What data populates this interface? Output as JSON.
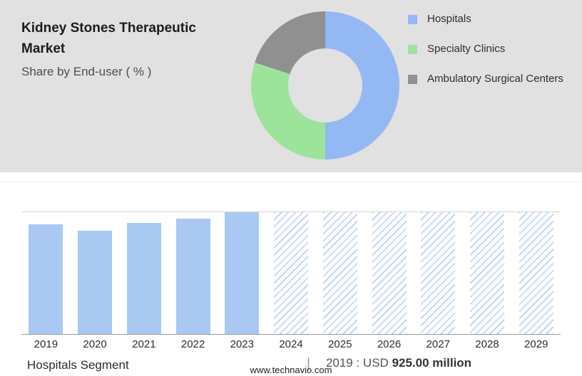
{
  "header": {
    "title": "Kidney Stones Therapeutic Market",
    "subtitle": "Share by End-user ( % )"
  },
  "legend": {
    "items": [
      {
        "label": "Hospitals",
        "color": "#93b8f3"
      },
      {
        "label": "Specialty Clinics",
        "color": "#9ce49b"
      },
      {
        "label": "Ambulatory Surgical Centers",
        "color": "#909090"
      }
    ]
  },
  "chart_data": [
    {
      "type": "pie",
      "title": "Share by End-user ( % )",
      "donut": true,
      "legend_position": "right",
      "labels": [
        "Hospitals",
        "Specialty Clinics",
        "Ambulatory Surgical Centers"
      ],
      "values_pct": [
        50,
        30,
        20
      ],
      "colors": [
        "#93b8f3",
        "#9ce49b",
        "#909090"
      ]
    },
    {
      "type": "bar",
      "title": "Hospitals Segment market size by year",
      "categories": [
        "2019",
        "2020",
        "2021",
        "2022",
        "2023",
        "2024",
        "2025",
        "2026",
        "2027",
        "2028",
        "2029"
      ],
      "bar_heights_pct": [
        90,
        85,
        91,
        95,
        100,
        100,
        100,
        100,
        100,
        100,
        100
      ],
      "forecast_from_index": 5,
      "forecast_style": "hatched",
      "bar_color": "#a9c9f2",
      "known_values": [
        {
          "year": "2019",
          "label": "USD 925.00 million"
        }
      ],
      "grid": false,
      "ylabel": "",
      "xlabel": ""
    }
  ],
  "footer": {
    "segment_label": "Hospitals Segment",
    "divider": "|",
    "value_prefix": "2019 : USD",
    "value_bold": "925.00 million",
    "website": "www.technavio.com"
  }
}
